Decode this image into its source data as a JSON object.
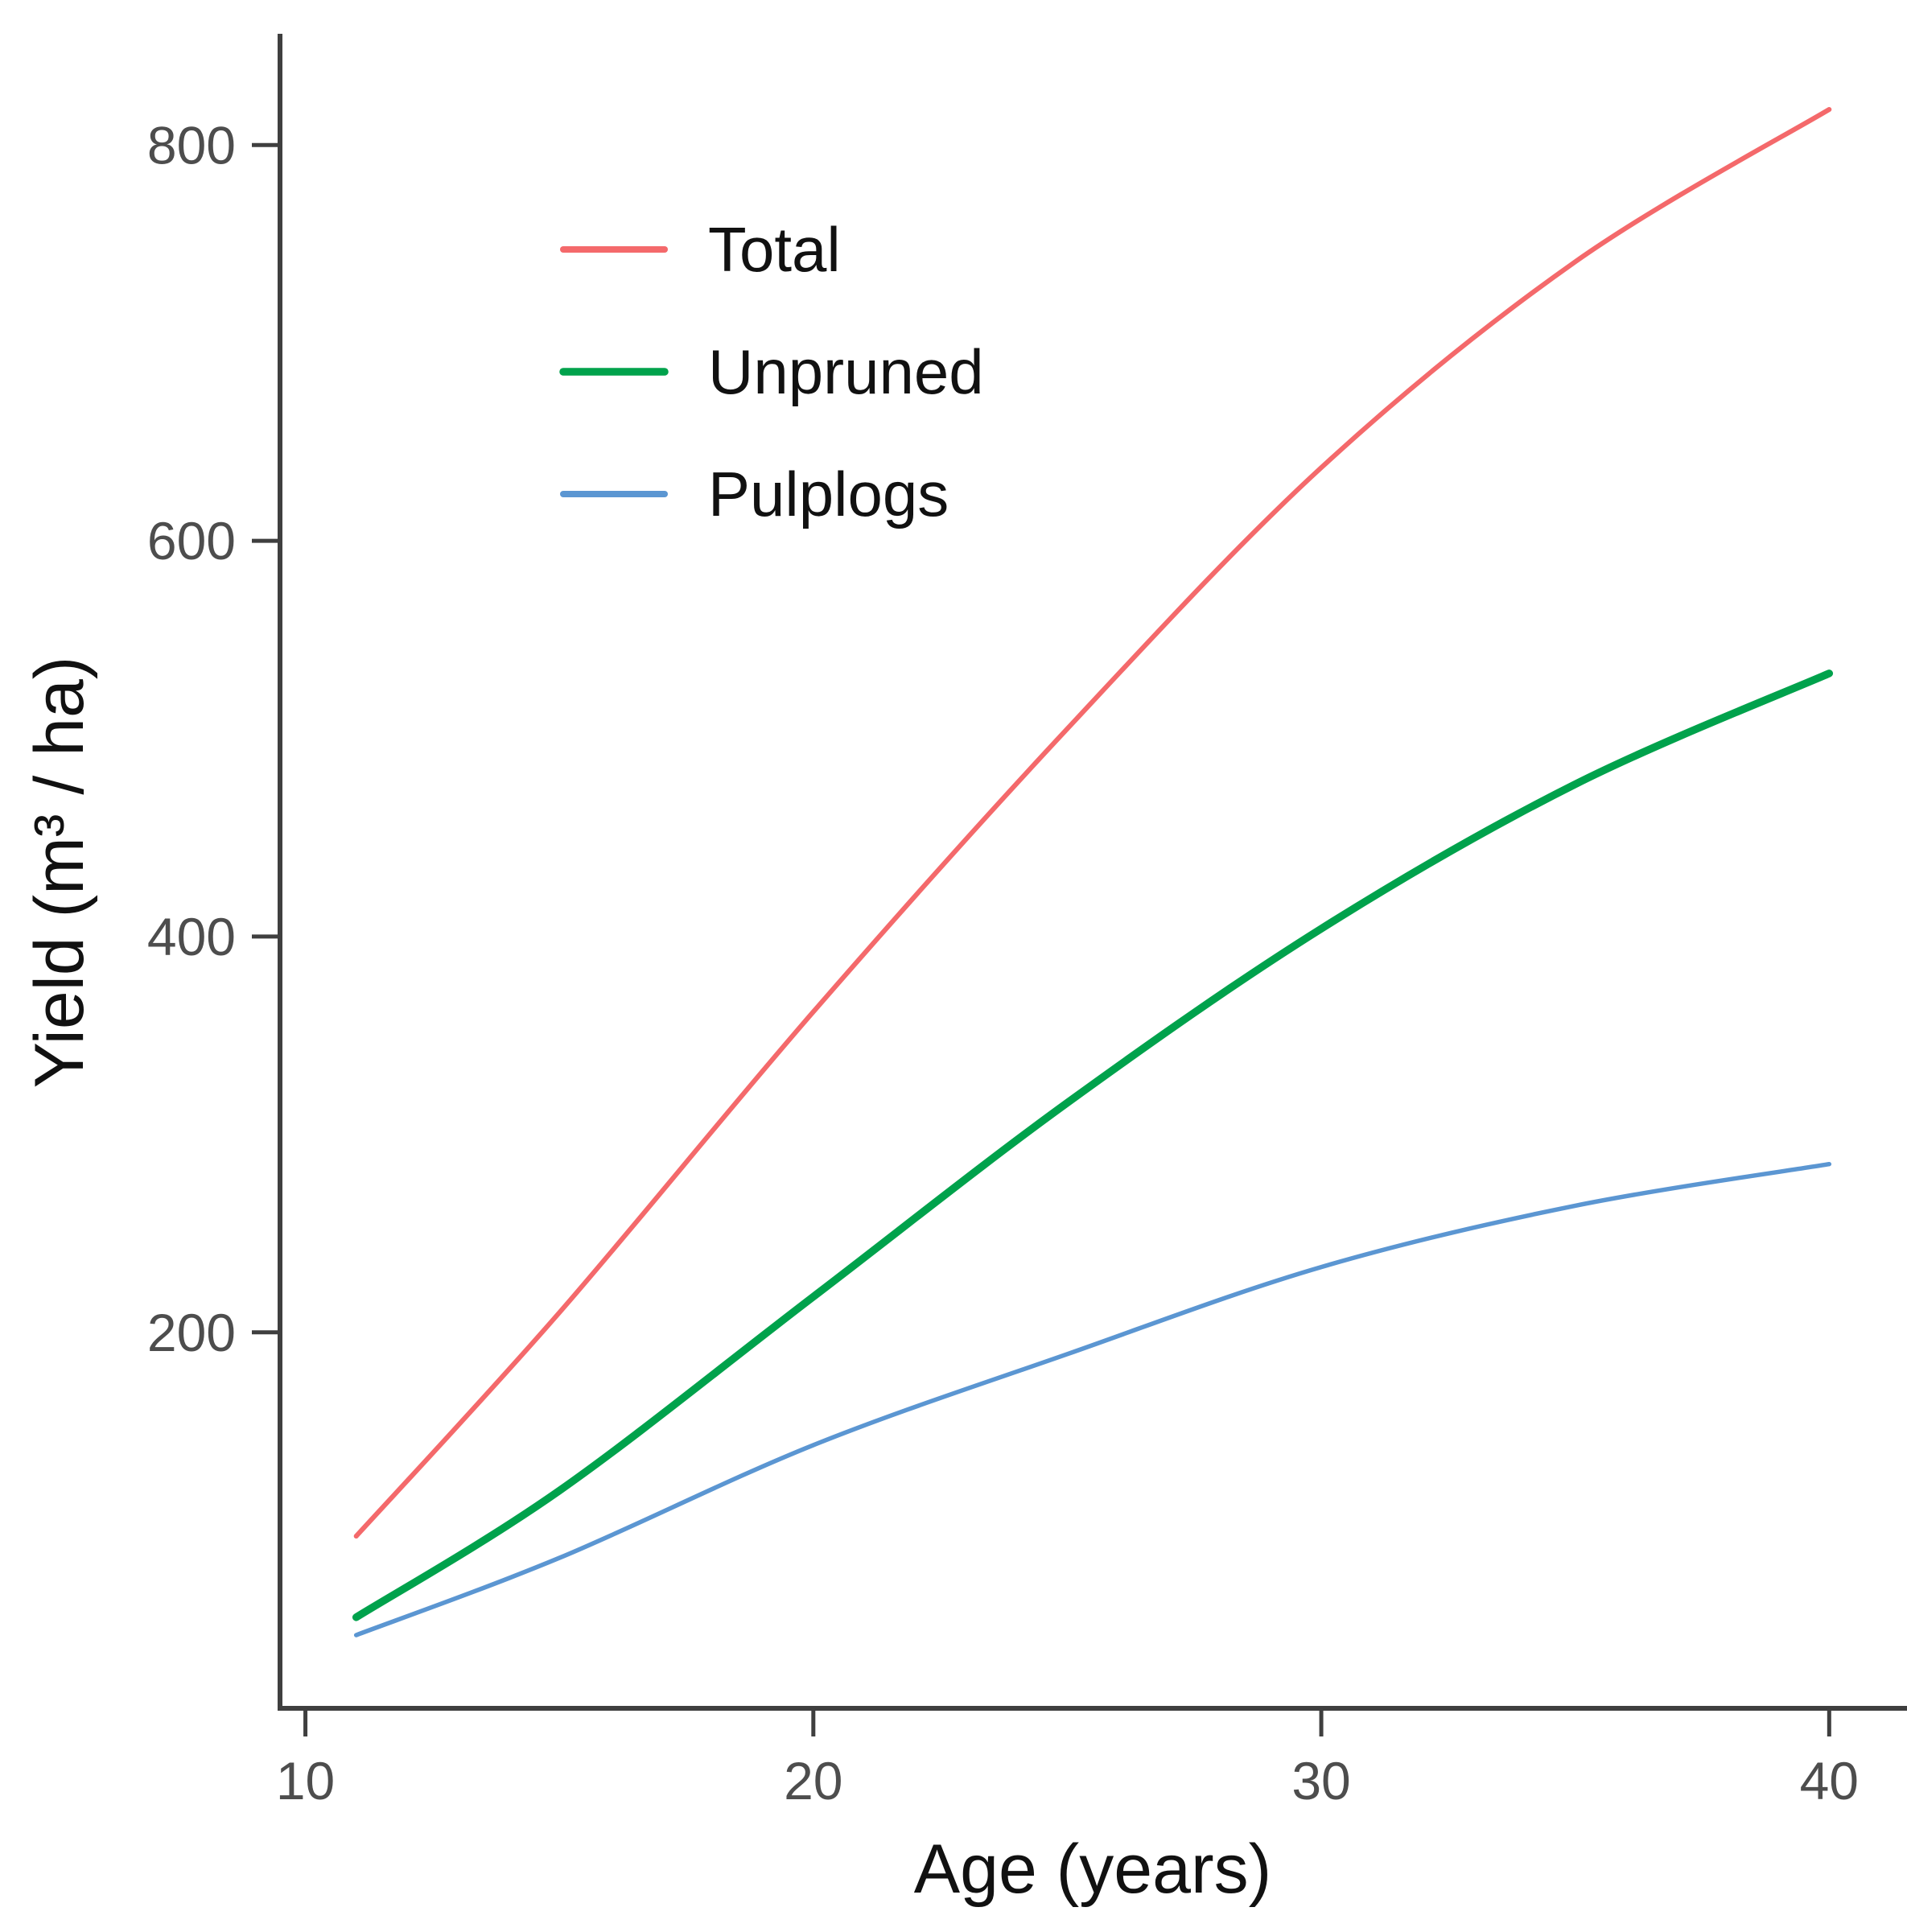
{
  "figure": {
    "background": "#ffffff"
  },
  "chart_data": {
    "type": "line",
    "title": "",
    "xlabel": "Age (years)",
    "ylabel": "Yield (m³ / ha)",
    "x": [
      11,
      15,
      20,
      25,
      30,
      35,
      40
    ],
    "series": [
      {
        "name": "Total",
        "color": "#F4696B",
        "line_width": 6,
        "values": [
          97,
          210,
          362,
          505,
          637,
          741,
          818
        ]
      },
      {
        "name": "Unpruned",
        "color": "#00A24C",
        "line_width": 9.5,
        "values": [
          56,
          120,
          218,
          316,
          404,
          477,
          533
        ]
      },
      {
        "name": "Pulplogs",
        "color": "#5B96D2",
        "line_width": 5.5,
        "values": [
          47,
          86,
          143,
          189,
          233,
          264,
          285
        ]
      }
    ],
    "x_ticks": [
      10,
      20,
      30,
      40
    ],
    "y_ticks": [
      200,
      400,
      600,
      800
    ],
    "xlim": [
      9.5,
      41.5
    ],
    "ylim": [
      10,
      855
    ],
    "grid": false,
    "legend_position": "top-left-inset",
    "axis_color": "#3f3f3f",
    "tick_label_color": "#4d4d4d",
    "text_color": "#111111"
  }
}
